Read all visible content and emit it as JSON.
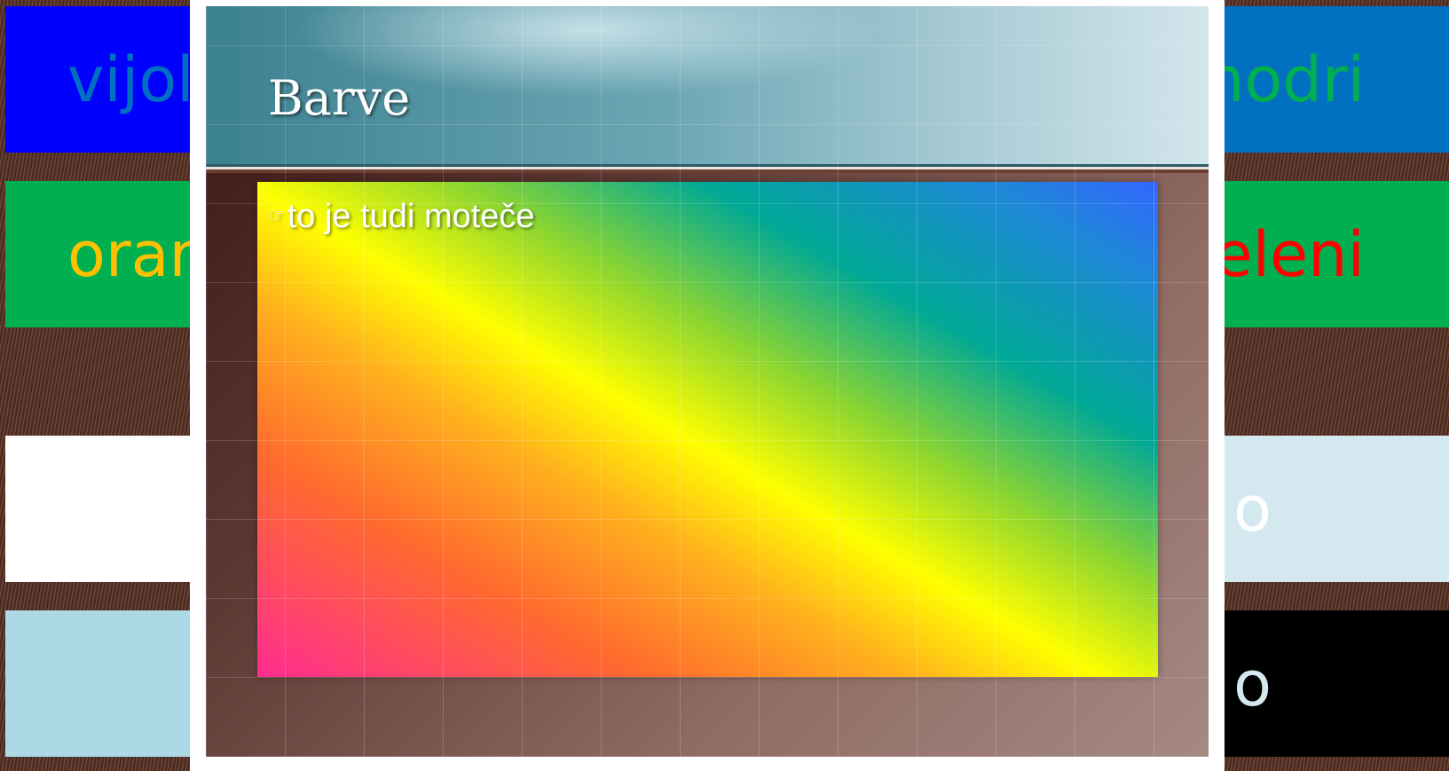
{
  "background": {
    "left_labels": [
      "vijol",
      "orar"
    ],
    "right_labels": [
      "modri",
      "eleni",
      "o",
      "o"
    ],
    "band_colors": [
      "#0000ff",
      "#0070c0",
      "#00b050",
      "#ffffff",
      "#d4e9ef",
      "#add8e6",
      "#000000"
    ]
  },
  "slide": {
    "title": "Barve",
    "bullet_icon": "☞",
    "bullet_text": "to je tudi moteče"
  }
}
